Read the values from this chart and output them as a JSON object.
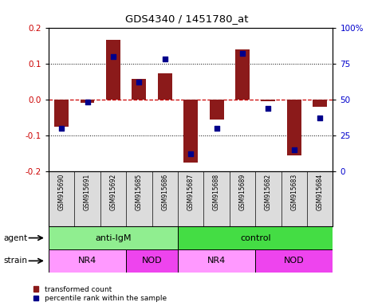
{
  "title": "GDS4340 / 1451780_at",
  "samples": [
    "GSM915690",
    "GSM915691",
    "GSM915692",
    "GSM915685",
    "GSM915686",
    "GSM915687",
    "GSM915688",
    "GSM915689",
    "GSM915682",
    "GSM915683",
    "GSM915684"
  ],
  "red_values": [
    -0.075,
    -0.01,
    0.165,
    0.057,
    0.072,
    -0.175,
    -0.055,
    0.14,
    -0.005,
    -0.155,
    -0.02
  ],
  "blue_values_pct": [
    30,
    48,
    80,
    62,
    78,
    12,
    30,
    82,
    44,
    15,
    37
  ],
  "ylim": [
    -0.2,
    0.2
  ],
  "yticks_left": [
    -0.2,
    -0.1,
    0.0,
    0.1,
    0.2
  ],
  "yticks_right": [
    0,
    25,
    50,
    75,
    100
  ],
  "agent_labels": [
    {
      "label": "anti-IgM",
      "start": 0,
      "end": 5,
      "color": "#90EE90"
    },
    {
      "label": "control",
      "start": 5,
      "end": 11,
      "color": "#44DD44"
    }
  ],
  "strain_labels": [
    {
      "label": "NR4",
      "start": 0,
      "end": 3,
      "color": "#FF99FF"
    },
    {
      "label": "NOD",
      "start": 3,
      "end": 5,
      "color": "#EE44EE"
    },
    {
      "label": "NR4",
      "start": 5,
      "end": 8,
      "color": "#FF99FF"
    },
    {
      "label": "NOD",
      "start": 8,
      "end": 11,
      "color": "#EE44EE"
    }
  ],
  "bar_color": "#8B1A1A",
  "dot_color": "#00008B",
  "hline_color": "#CC0000",
  "grid_color": "black",
  "cell_bg": "#DCDCDC",
  "left_label_color": "#CC0000",
  "right_label_color": "#0000CC",
  "bar_width": 0.55,
  "legend_red": "transformed count",
  "legend_blue": "percentile rank within the sample",
  "agent_row_label": "agent",
  "strain_row_label": "strain"
}
